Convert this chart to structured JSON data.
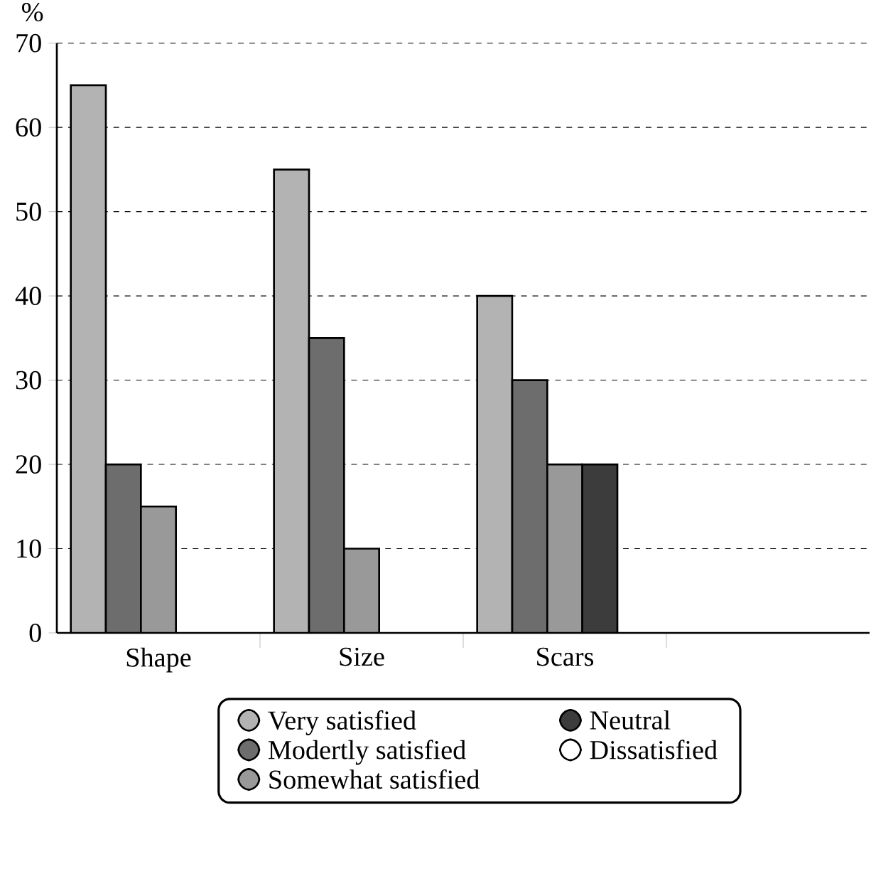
{
  "chart_data": {
    "type": "bar",
    "ylabel": "%",
    "categories": [
      "Shape",
      "Size",
      "Scars",
      null
    ],
    "series": [
      {
        "name": "Very satisfied",
        "color": "#b3b3b3",
        "values": [
          65,
          55,
          40,
          null
        ]
      },
      {
        "name": "Modertly satisfied",
        "color": "#6d6d6d",
        "values": [
          20,
          35,
          30,
          null
        ]
      },
      {
        "name": "Somewhat satisfied",
        "color": "#999999",
        "values": [
          15,
          10,
          20,
          null
        ]
      },
      {
        "name": "Neutral",
        "color": "#3c3c3c",
        "values": [
          null,
          null,
          20,
          null
        ]
      },
      {
        "name": "Dissatisfied",
        "color": "#ffffff",
        "values": [
          null,
          null,
          null,
          null
        ]
      }
    ],
    "ylim": [
      0,
      70
    ],
    "yticks": [
      0,
      10,
      20,
      30,
      40,
      50,
      60,
      70
    ],
    "grid": "y",
    "legend": "bottom"
  }
}
